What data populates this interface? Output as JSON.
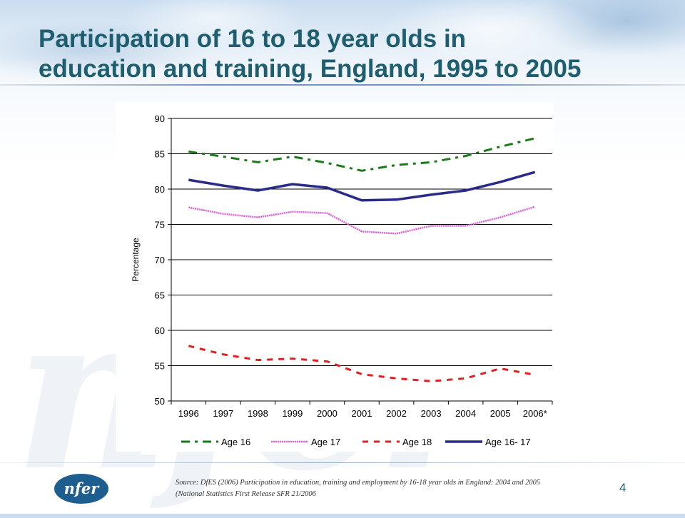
{
  "slide": {
    "title_line1": "Participation of 16 to 18 year olds in",
    "title_line2": "education and training, England, 1995 to 2005",
    "source": "Source: DfES (2006) Participation in education, training and employment by 16-18 year olds in England: 2004 and 2005 (National Statistics First Release SFR 21/2006",
    "page_number": "4",
    "logo_text": "nfer",
    "watermark_text": "nfer"
  },
  "colors": {
    "title": "#1e5e6e",
    "age16": "#1a7a1a",
    "age17": "#e060e0",
    "age18": "#e02020",
    "age1617": "#2a2a8a"
  },
  "chart_data": {
    "type": "line",
    "title": "",
    "xlabel": "",
    "ylabel": "Percentage",
    "ylim": [
      50,
      90
    ],
    "yticks": [
      50,
      55,
      60,
      65,
      70,
      75,
      80,
      85,
      90
    ],
    "grid": true,
    "legend_position": "bottom",
    "categories": [
      "1996",
      "1997",
      "1998",
      "1999",
      "2000",
      "2001",
      "2002",
      "2003",
      "2004",
      "2005",
      "2006*"
    ],
    "series": [
      {
        "name": "Age 16",
        "color": "#1a7a1a",
        "dash": "dashdot",
        "values": [
          85.3,
          84.6,
          83.8,
          84.6,
          83.7,
          82.6,
          83.4,
          83.8,
          84.7,
          86.0,
          87.2
        ]
      },
      {
        "name": "Age 17",
        "color": "#e060e0",
        "dash": "dotted",
        "values": [
          77.4,
          76.5,
          76.0,
          76.8,
          76.6,
          74.0,
          73.7,
          74.8,
          74.8,
          76.0,
          77.5
        ]
      },
      {
        "name": "Age 18",
        "color": "#e02020",
        "dash": "dashed",
        "values": [
          57.8,
          56.6,
          55.8,
          56.0,
          55.6,
          53.8,
          53.2,
          52.8,
          53.2,
          54.6,
          53.7
        ]
      },
      {
        "name": "Age 16- 17",
        "color": "#2a2a8a",
        "dash": "solid",
        "values": [
          81.3,
          80.5,
          79.8,
          80.7,
          80.2,
          78.4,
          78.5,
          79.2,
          79.8,
          81.0,
          82.4
        ]
      }
    ]
  }
}
